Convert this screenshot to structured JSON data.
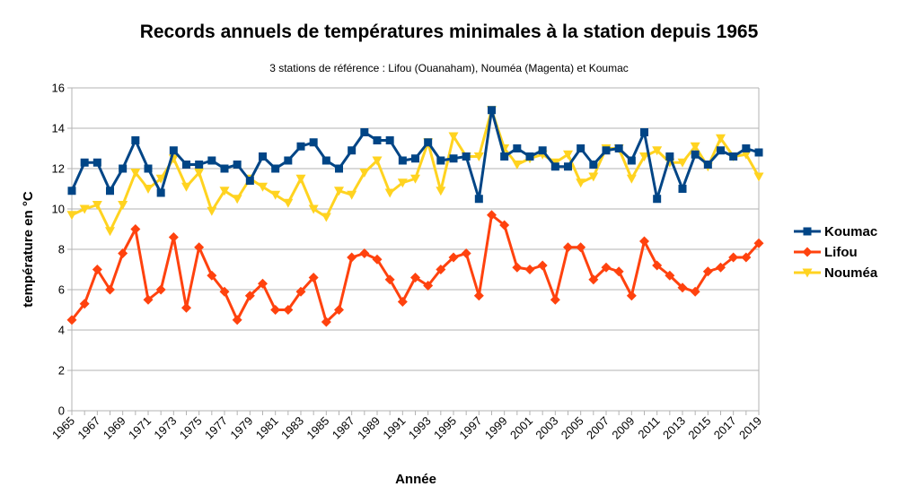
{
  "chart_data": {
    "type": "line",
    "title": "Records annuels de températures minimales à la station depuis 1965",
    "subtitle": "3 stations de référence : Lifou (Ouanaham), Nouméa (Magenta) et Koumac",
    "xlabel": "Année",
    "ylabel": "température en °C",
    "ylim": [
      0,
      16
    ],
    "yticks": [
      0,
      2,
      4,
      6,
      8,
      10,
      12,
      14,
      16
    ],
    "xlim": [
      1965,
      2019
    ],
    "xticks": [
      1965,
      1967,
      1969,
      1971,
      1973,
      1975,
      1977,
      1979,
      1981,
      1983,
      1985,
      1987,
      1989,
      1991,
      1993,
      1995,
      1997,
      1999,
      2001,
      2003,
      2005,
      2007,
      2009,
      2011,
      2013,
      2015,
      2017,
      2019
    ],
    "grid": true,
    "legend_position": "right",
    "x": [
      1965,
      1966,
      1967,
      1968,
      1969,
      1970,
      1971,
      1972,
      1973,
      1974,
      1975,
      1976,
      1977,
      1978,
      1979,
      1980,
      1981,
      1982,
      1983,
      1984,
      1985,
      1986,
      1987,
      1988,
      1989,
      1990,
      1991,
      1992,
      1993,
      1994,
      1995,
      1996,
      1997,
      1998,
      1999,
      2000,
      2001,
      2002,
      2003,
      2004,
      2005,
      2006,
      2007,
      2008,
      2009,
      2010,
      2011,
      2012,
      2013,
      2014,
      2015,
      2016,
      2017,
      2018,
      2019
    ],
    "series": [
      {
        "name": "Koumac",
        "color": "#004586",
        "marker": "square",
        "values": [
          10.9,
          12.3,
          12.3,
          10.9,
          12.0,
          13.4,
          12.0,
          10.8,
          12.9,
          12.2,
          12.2,
          12.4,
          12.0,
          12.2,
          11.4,
          12.6,
          12.0,
          12.4,
          13.1,
          13.3,
          12.4,
          12.0,
          12.9,
          13.8,
          13.4,
          13.4,
          12.4,
          12.5,
          13.3,
          12.4,
          12.5,
          12.6,
          10.5,
          14.9,
          12.6,
          13.0,
          12.6,
          12.9,
          12.1,
          12.1,
          13.0,
          12.2,
          12.9,
          13.0,
          12.4,
          13.8,
          10.5,
          12.6,
          11.0,
          12.7,
          12.2,
          12.9,
          12.6,
          13.0,
          12.8
        ]
      },
      {
        "name": "Lifou",
        "color": "#ff420e",
        "marker": "diamond",
        "values": [
          4.5,
          5.3,
          7.0,
          6.0,
          7.8,
          9.0,
          5.5,
          6.0,
          8.6,
          5.1,
          8.1,
          6.7,
          5.9,
          4.5,
          5.7,
          6.3,
          5.0,
          5.0,
          5.9,
          6.6,
          4.4,
          5.0,
          7.6,
          7.8,
          7.5,
          6.5,
          5.4,
          6.6,
          6.2,
          7.0,
          7.6,
          7.8,
          5.7,
          9.7,
          9.2,
          7.1,
          7.0,
          7.2,
          5.5,
          8.1,
          8.1,
          6.5,
          7.1,
          6.9,
          5.7,
          8.4,
          7.2,
          6.7,
          6.1,
          5.9,
          6.9,
          7.1,
          7.6,
          7.6,
          8.3
        ]
      },
      {
        "name": "Nouméa",
        "color": "#ffd320",
        "marker": "triangle-down",
        "values": [
          9.7,
          10.0,
          10.2,
          8.9,
          10.2,
          11.8,
          11.0,
          11.5,
          12.5,
          11.1,
          11.8,
          9.9,
          10.9,
          10.5,
          11.5,
          11.1,
          10.7,
          10.3,
          11.5,
          10.0,
          9.6,
          10.9,
          10.7,
          11.8,
          12.4,
          10.8,
          11.3,
          11.5,
          13.3,
          10.9,
          13.6,
          12.6,
          12.6,
          14.9,
          13.0,
          12.2,
          12.5,
          12.7,
          12.3,
          12.7,
          11.3,
          11.6,
          13.0,
          13.0,
          11.5,
          12.6,
          12.9,
          12.3,
          12.3,
          13.1,
          12.1,
          13.5,
          12.6,
          12.7,
          11.6
        ]
      }
    ]
  }
}
